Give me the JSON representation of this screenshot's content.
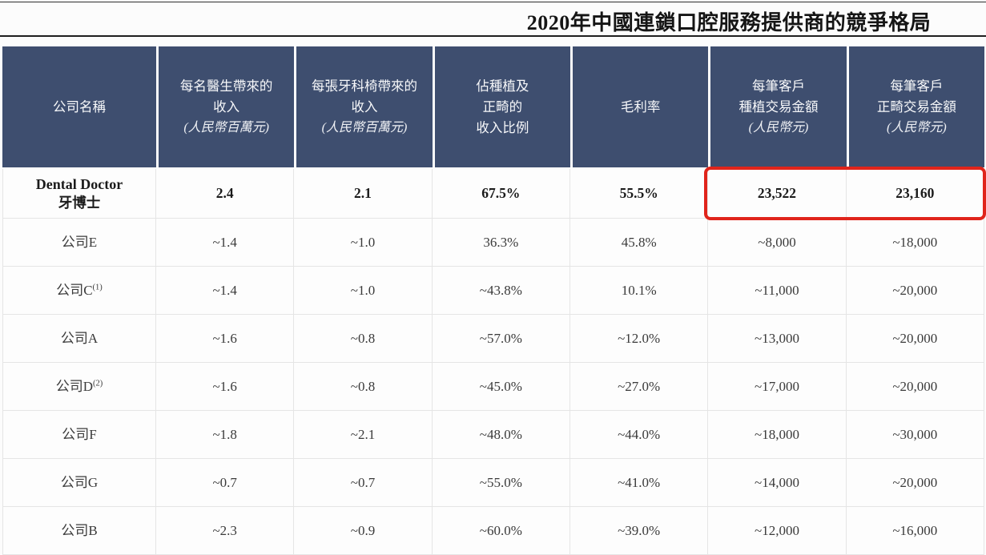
{
  "title": "2020年中國連鎖口腔服務提供商的競爭格局",
  "table": {
    "columns": [
      {
        "lines": [
          "公司名稱"
        ]
      },
      {
        "lines": [
          "每名醫生帶來的",
          "收入"
        ],
        "note": "(人民幣百萬元)"
      },
      {
        "lines": [
          "每張牙科椅帶來的",
          "收入"
        ],
        "note": "(人民幣百萬元)"
      },
      {
        "lines": [
          "佔種植及",
          "正畸的",
          "收入比例"
        ]
      },
      {
        "lines": [
          "毛利率"
        ]
      },
      {
        "lines": [
          "每筆客戶",
          "種植交易金額"
        ],
        "note": "(人民幣元)"
      },
      {
        "lines": [
          "每筆客戶",
          "正畸交易金額"
        ],
        "note": "(人民幣元)"
      }
    ],
    "rows": [
      {
        "name_en": "Dental Doctor",
        "name": "牙博士",
        "values": [
          "2.4",
          "2.1",
          "67.5%",
          "55.5%",
          "23,522",
          "23,160"
        ]
      },
      {
        "name": "公司E",
        "values": [
          "~1.4",
          "~1.0",
          "36.3%",
          "45.8%",
          "~8,000",
          "~18,000"
        ]
      },
      {
        "name": "公司C",
        "sup": "(1)",
        "values": [
          "~1.4",
          "~1.0",
          "~43.8%",
          "10.1%",
          "~11,000",
          "~20,000"
        ]
      },
      {
        "name": "公司A",
        "values": [
          "~1.6",
          "~0.8",
          "~57.0%",
          "~12.0%",
          "~13,000",
          "~20,000"
        ]
      },
      {
        "name": "公司D",
        "sup": "(2)",
        "values": [
          "~1.6",
          "~0.8",
          "~45.0%",
          "~27.0%",
          "~17,000",
          "~20,000"
        ]
      },
      {
        "name": "公司F",
        "values": [
          "~1.8",
          "~2.1",
          "~48.0%",
          "~44.0%",
          "~18,000",
          "~30,000"
        ]
      },
      {
        "name": "公司G",
        "values": [
          "~0.7",
          "~0.7",
          "~55.0%",
          "~41.0%",
          "~14,000",
          "~20,000"
        ]
      },
      {
        "name": "公司B",
        "values": [
          "~2.3",
          "~0.9",
          "~60.0%",
          "~39.0%",
          "~12,000",
          "~16,000"
        ]
      }
    ],
    "highlight": {
      "row_index": 0,
      "value_indices": [
        4,
        5
      ],
      "border_color": "#e0241b",
      "note": "red box around Dental Doctor implant and orthodontic transaction values"
    }
  },
  "colors": {
    "header_bg": "#3e4e6f",
    "header_text": "#f7f8fa",
    "highlight_border": "#e0241b",
    "grid_line": "#e5e5e5",
    "body_text": "#3a3a3a",
    "page_bg": "#fcfcfc"
  }
}
